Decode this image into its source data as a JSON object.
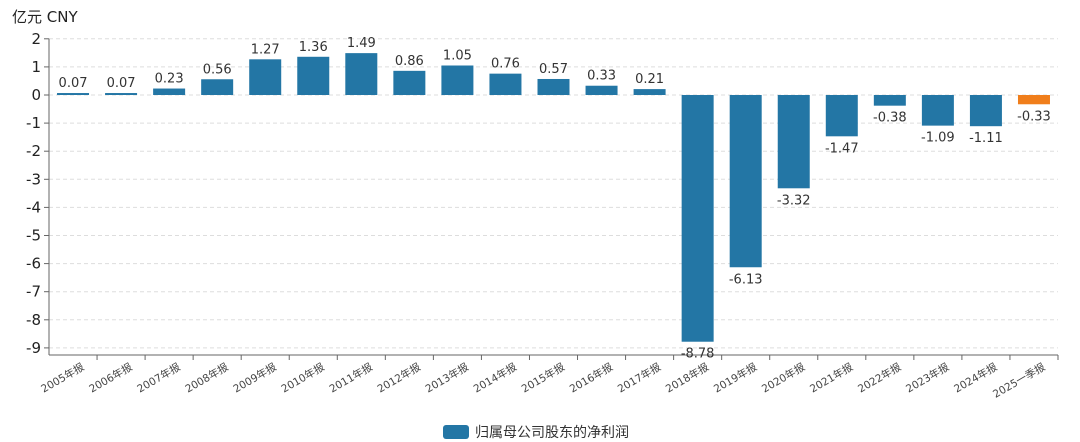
{
  "chart_data": {
    "type": "bar",
    "unit_label": "亿元  CNY",
    "categories": [
      "2005年报",
      "2006年报",
      "2007年报",
      "2008年报",
      "2009年报",
      "2010年报",
      "2011年报",
      "2012年报",
      "2013年报",
      "2014年报",
      "2015年报",
      "2016年报",
      "2017年报",
      "2018年报",
      "2019年报",
      "2020年报",
      "2021年报",
      "2022年报",
      "2023年报",
      "2024年报",
      "2025一季报"
    ],
    "series": [
      {
        "name": "归属母公司股东的净利润",
        "values": [
          0.07,
          0.07,
          0.23,
          0.56,
          1.27,
          1.36,
          1.49,
          0.86,
          1.05,
          0.76,
          0.57,
          0.33,
          0.21,
          -8.78,
          -6.13,
          -3.32,
          -1.47,
          -0.38,
          -1.09,
          -1.11,
          -0.33
        ],
        "value_labels": [
          "0.07",
          "0.07",
          "0.23",
          "0.56",
          "1.27",
          "1.36",
          "1.49",
          "0.86",
          "1.05",
          "0.76",
          "0.57",
          "0.33",
          "0.21",
          "-8.78",
          "-6.13",
          "-3.32",
          "-1.47",
          "-0.38",
          "-1.09",
          "-1.11",
          "-0.33"
        ]
      }
    ],
    "ylim": [
      -9,
      2
    ],
    "yticks": [
      "2",
      "1",
      "0",
      "-1",
      "-2",
      "-3",
      "-4",
      "-5",
      "-6",
      "-7",
      "-8",
      "-9"
    ],
    "grid": true,
    "legend_position": "bottom-center",
    "colors": {
      "bar": "#2376a5",
      "highlight_bar": "#f07e1b",
      "grid": "#dddddd",
      "axis": "#666666"
    },
    "highlight_index": 20
  }
}
